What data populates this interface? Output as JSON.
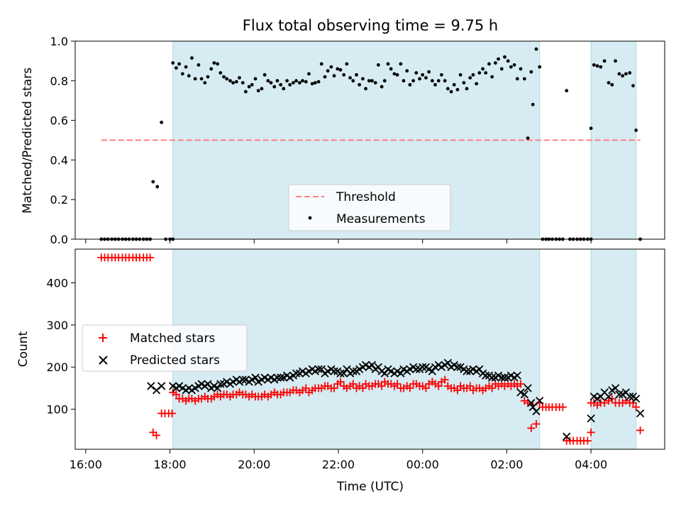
{
  "chart_data": [
    {
      "type": "scatter",
      "title": "Flux total observing time = 9.75 h",
      "ylabel": "Matched/Predicted stars",
      "ylim": [
        0,
        1.0
      ],
      "yticks": [
        0.0,
        0.2,
        0.4,
        0.6,
        0.8,
        1.0
      ],
      "ytick_labels": [
        "0.0",
        "0.2",
        "0.4",
        "0.6",
        "0.8",
        "1.0"
      ],
      "xlim": [
        15.75,
        29.75
      ],
      "shaded_intervals": [
        [
          18.07,
          26.78
        ],
        [
          28.0,
          29.07
        ]
      ],
      "shade_color": "#add8e6",
      "legend": {
        "placement": "lower-center",
        "entries": [
          "Threshold",
          "Measurements"
        ]
      },
      "series": [
        {
          "name": "Threshold",
          "kind": "dashed-line",
          "color": "#ff7f7f",
          "x": [
            16.37,
            29.17
          ],
          "y": [
            0.5,
            0.5
          ]
        },
        {
          "name": "Measurements",
          "kind": "points",
          "color": "#000000",
          "x": [
            16.37,
            16.45,
            16.53,
            16.62,
            16.7,
            16.78,
            16.87,
            16.95,
            17.03,
            17.12,
            17.2,
            17.28,
            17.37,
            17.45,
            17.53,
            17.6,
            17.7,
            17.8,
            17.9,
            18.0,
            18.07,
            18.07,
            18.15,
            18.22,
            18.3,
            18.38,
            18.45,
            18.52,
            18.6,
            18.68,
            18.75,
            18.83,
            18.9,
            18.98,
            19.05,
            19.13,
            19.2,
            19.28,
            19.35,
            19.43,
            19.5,
            19.58,
            19.65,
            19.73,
            19.8,
            19.88,
            19.95,
            20.03,
            20.1,
            20.18,
            20.25,
            20.33,
            20.4,
            20.48,
            20.55,
            20.63,
            20.7,
            20.78,
            20.85,
            20.93,
            21.0,
            21.08,
            21.15,
            21.23,
            21.3,
            21.38,
            21.45,
            21.53,
            21.6,
            21.68,
            21.75,
            21.83,
            21.9,
            21.98,
            22.05,
            22.13,
            22.2,
            22.28,
            22.35,
            22.43,
            22.5,
            22.58,
            22.65,
            22.73,
            22.8,
            22.88,
            22.95,
            23.03,
            23.1,
            23.18,
            23.25,
            23.33,
            23.4,
            23.48,
            23.55,
            23.63,
            23.7,
            23.78,
            23.85,
            23.93,
            24.0,
            24.08,
            24.15,
            24.23,
            24.3,
            24.38,
            24.45,
            24.53,
            24.6,
            24.68,
            24.75,
            24.83,
            24.9,
            24.98,
            25.05,
            25.13,
            25.2,
            25.28,
            25.35,
            25.43,
            25.5,
            25.58,
            25.65,
            25.73,
            25.8,
            25.88,
            25.95,
            26.03,
            26.1,
            26.18,
            26.25,
            26.33,
            26.42,
            26.5,
            26.58,
            26.62,
            26.7,
            26.78,
            26.85,
            26.93,
            27.0,
            27.08,
            27.17,
            27.25,
            27.33,
            27.42,
            27.5,
            27.58,
            27.67,
            27.75,
            27.83,
            27.92,
            28.0,
            28.0,
            28.07,
            28.15,
            28.23,
            28.32,
            28.42,
            28.5,
            28.58,
            28.67,
            28.75,
            28.83,
            28.92,
            29.0,
            29.07,
            29.17
          ],
          "y": [
            0,
            0,
            0,
            0,
            0,
            0,
            0,
            0,
            0,
            0,
            0,
            0,
            0,
            0,
            0,
            0.29,
            0.265,
            0.59,
            0,
            0,
            0,
            0.89,
            0.865,
            0.885,
            0.835,
            0.87,
            0.825,
            0.915,
            0.81,
            0.88,
            0.81,
            0.79,
            0.82,
            0.86,
            0.89,
            0.885,
            0.84,
            0.82,
            0.81,
            0.8,
            0.79,
            0.795,
            0.815,
            0.79,
            0.745,
            0.77,
            0.78,
            0.81,
            0.75,
            0.76,
            0.83,
            0.8,
            0.79,
            0.77,
            0.8,
            0.78,
            0.76,
            0.8,
            0.78,
            0.79,
            0.8,
            0.79,
            0.8,
            0.795,
            0.835,
            0.785,
            0.79,
            0.795,
            0.885,
            0.82,
            0.85,
            0.87,
            0.825,
            0.86,
            0.855,
            0.83,
            0.885,
            0.815,
            0.8,
            0.83,
            0.78,
            0.81,
            0.76,
            0.8,
            0.8,
            0.79,
            0.88,
            0.77,
            0.8,
            0.885,
            0.86,
            0.835,
            0.83,
            0.885,
            0.8,
            0.85,
            0.78,
            0.8,
            0.84,
            0.81,
            0.83,
            0.815,
            0.845,
            0.8,
            0.78,
            0.8,
            0.83,
            0.8,
            0.76,
            0.745,
            0.78,
            0.755,
            0.83,
            0.79,
            0.76,
            0.815,
            0.83,
            0.785,
            0.84,
            0.86,
            0.84,
            0.885,
            0.82,
            0.89,
            0.91,
            0.86,
            0.92,
            0.9,
            0.87,
            0.88,
            0.81,
            0.86,
            0.81,
            0.51,
            0.845,
            0.68,
            0.96,
            0.87,
            0,
            0,
            0,
            0,
            0,
            0,
            0,
            0.75,
            0,
            0,
            0,
            0,
            0,
            0,
            0,
            0.56,
            0.88,
            0.875,
            0.87,
            0.9,
            0.79,
            0.78,
            0.9,
            0.835,
            0.825,
            0.835,
            0.84,
            0.775,
            0.55,
            0
          ]
        }
      ]
    },
    {
      "type": "scatter",
      "xlabel": "Time (UTC)",
      "ylabel": "Count",
      "ylim": [
        5,
        480
      ],
      "yticks": [
        100,
        200,
        300,
        400
      ],
      "ytick_labels": [
        "100",
        "200",
        "300",
        "400"
      ],
      "xlim": [
        15.75,
        29.75
      ],
      "xticks": [
        16,
        18,
        20,
        22,
        24,
        26,
        28
      ],
      "xtick_labels": [
        "16:00",
        "18:00",
        "20:00",
        "22:00",
        "00:00",
        "02:00",
        "04:00"
      ],
      "shaded_intervals": [
        [
          18.07,
          26.78
        ],
        [
          28.0,
          29.07
        ]
      ],
      "shade_color": "#add8e6",
      "legend": {
        "placement": "center-left",
        "entries": [
          "Matched stars",
          "Predicted stars"
        ]
      },
      "series": [
        {
          "name": "Matched stars",
          "kind": "plus",
          "color": "#ff0000",
          "x": [
            16.37,
            16.45,
            16.53,
            16.62,
            16.7,
            16.78,
            16.87,
            16.95,
            17.03,
            17.12,
            17.2,
            17.28,
            17.37,
            17.45,
            17.53,
            17.6,
            17.68,
            17.8,
            17.88,
            17.97,
            18.05,
            18.07,
            18.15,
            18.22,
            18.3,
            18.38,
            18.45,
            18.52,
            18.6,
            18.68,
            18.75,
            18.83,
            18.9,
            18.98,
            19.05,
            19.13,
            19.2,
            19.28,
            19.35,
            19.43,
            19.5,
            19.58,
            19.65,
            19.73,
            19.8,
            19.88,
            19.95,
            20.03,
            20.1,
            20.18,
            20.25,
            20.33,
            20.4,
            20.48,
            20.55,
            20.63,
            20.7,
            20.78,
            20.85,
            20.93,
            21.0,
            21.08,
            21.15,
            21.23,
            21.3,
            21.38,
            21.45,
            21.53,
            21.6,
            21.68,
            21.75,
            21.83,
            21.9,
            21.98,
            22.05,
            22.13,
            22.2,
            22.28,
            22.35,
            22.43,
            22.5,
            22.58,
            22.65,
            22.73,
            22.8,
            22.88,
            22.95,
            23.03,
            23.1,
            23.18,
            23.25,
            23.33,
            23.4,
            23.48,
            23.55,
            23.63,
            23.7,
            23.78,
            23.85,
            23.93,
            24.0,
            24.08,
            24.15,
            24.23,
            24.3,
            24.38,
            24.45,
            24.53,
            24.6,
            24.68,
            24.75,
            24.83,
            24.9,
            24.98,
            25.05,
            25.13,
            25.2,
            25.28,
            25.35,
            25.43,
            25.5,
            25.58,
            25.65,
            25.73,
            25.8,
            25.88,
            25.95,
            26.03,
            26.1,
            26.18,
            26.25,
            26.33,
            26.42,
            26.5,
            26.58,
            26.62,
            26.7,
            26.78,
            26.85,
            26.93,
            27.0,
            27.08,
            27.17,
            27.25,
            27.33,
            27.42,
            27.5,
            27.58,
            27.67,
            27.75,
            27.83,
            27.92,
            28.0,
            28.0,
            28.07,
            28.15,
            28.23,
            28.32,
            28.42,
            28.5,
            28.58,
            28.67,
            28.75,
            28.83,
            28.92,
            29.0,
            29.07,
            29.17
          ],
          "y": [
            460,
            460,
            460,
            460,
            460,
            460,
            460,
            460,
            460,
            460,
            460,
            460,
            460,
            460,
            460,
            45,
            38,
            90,
            90,
            90,
            90,
            140,
            135,
            125,
            125,
            120,
            125,
            125,
            120,
            125,
            125,
            130,
            125,
            125,
            130,
            135,
            130,
            135,
            135,
            130,
            135,
            135,
            140,
            135,
            135,
            130,
            135,
            130,
            130,
            130,
            135,
            130,
            135,
            140,
            135,
            135,
            140,
            140,
            140,
            145,
            145,
            140,
            145,
            150,
            140,
            145,
            150,
            150,
            150,
            155,
            155,
            150,
            150,
            160,
            165,
            155,
            150,
            155,
            160,
            150,
            155,
            150,
            160,
            155,
            155,
            160,
            160,
            155,
            165,
            160,
            160,
            155,
            160,
            150,
            150,
            155,
            150,
            160,
            160,
            155,
            155,
            150,
            160,
            165,
            160,
            155,
            165,
            170,
            155,
            150,
            150,
            145,
            155,
            150,
            150,
            155,
            145,
            150,
            150,
            145,
            150,
            155,
            150,
            160,
            155,
            160,
            155,
            160,
            155,
            160,
            155,
            160,
            120,
            115,
            55,
            110,
            65,
            115,
            105,
            105,
            105,
            105,
            105,
            105,
            105,
            25,
            25,
            25,
            25,
            25,
            25,
            25,
            45,
            115,
            115,
            110,
            115,
            115,
            120,
            125,
            115,
            115,
            115,
            120,
            115,
            115,
            105,
            50
          ]
        },
        {
          "name": "Predicted stars",
          "kind": "x",
          "color": "#000000",
          "x": [
            17.55,
            17.68,
            17.8,
            18.07,
            18.15,
            18.22,
            18.3,
            18.38,
            18.45,
            18.52,
            18.6,
            18.68,
            18.75,
            18.83,
            18.9,
            18.98,
            19.05,
            19.13,
            19.2,
            19.28,
            19.35,
            19.43,
            19.5,
            19.58,
            19.65,
            19.73,
            19.8,
            19.88,
            19.95,
            20.03,
            20.1,
            20.18,
            20.25,
            20.33,
            20.4,
            20.48,
            20.55,
            20.63,
            20.7,
            20.78,
            20.85,
            20.93,
            21.0,
            21.08,
            21.15,
            21.23,
            21.3,
            21.38,
            21.45,
            21.53,
            21.6,
            21.68,
            21.75,
            21.83,
            21.9,
            21.98,
            22.05,
            22.13,
            22.2,
            22.28,
            22.35,
            22.43,
            22.5,
            22.58,
            22.65,
            22.73,
            22.8,
            22.88,
            22.95,
            23.03,
            23.1,
            23.18,
            23.25,
            23.33,
            23.4,
            23.48,
            23.55,
            23.63,
            23.7,
            23.78,
            23.85,
            23.93,
            24.0,
            24.08,
            24.15,
            24.23,
            24.3,
            24.38,
            24.45,
            24.53,
            24.6,
            24.68,
            24.75,
            24.83,
            24.9,
            24.98,
            25.05,
            25.13,
            25.2,
            25.28,
            25.35,
            25.43,
            25.5,
            25.58,
            25.65,
            25.73,
            25.8,
            25.88,
            25.95,
            26.03,
            26.1,
            26.18,
            26.25,
            26.33,
            26.42,
            26.5,
            26.58,
            26.62,
            26.7,
            26.78,
            27.42,
            28.0,
            28.07,
            28.15,
            28.23,
            28.32,
            28.42,
            28.5,
            28.58,
            28.67,
            28.75,
            28.83,
            28.92,
            29.0,
            29.07,
            29.17
          ],
          "y": [
            155,
            145,
            155,
            155,
            150,
            155,
            150,
            145,
            150,
            145,
            150,
            155,
            160,
            155,
            160,
            150,
            155,
            150,
            160,
            160,
            165,
            160,
            165,
            170,
            165,
            170,
            170,
            165,
            170,
            175,
            165,
            170,
            175,
            170,
            175,
            170,
            175,
            175,
            175,
            180,
            175,
            180,
            185,
            185,
            190,
            185,
            190,
            195,
            190,
            195,
            195,
            185,
            190,
            195,
            190,
            190,
            185,
            185,
            195,
            185,
            190,
            190,
            195,
            200,
            205,
            200,
            205,
            195,
            200,
            190,
            185,
            195,
            190,
            185,
            190,
            185,
            195,
            190,
            195,
            200,
            195,
            195,
            200,
            200,
            195,
            190,
            200,
            205,
            200,
            205,
            210,
            200,
            205,
            200,
            200,
            195,
            190,
            190,
            195,
            190,
            195,
            185,
            180,
            180,
            175,
            175,
            180,
            175,
            175,
            175,
            180,
            175,
            180,
            140,
            135,
            150,
            115,
            105,
            95,
            120,
            35,
            78,
            130,
            125,
            130,
            140,
            130,
            145,
            150,
            135,
            135,
            140,
            130,
            130,
            125,
            90
          ]
        }
      ]
    }
  ]
}
